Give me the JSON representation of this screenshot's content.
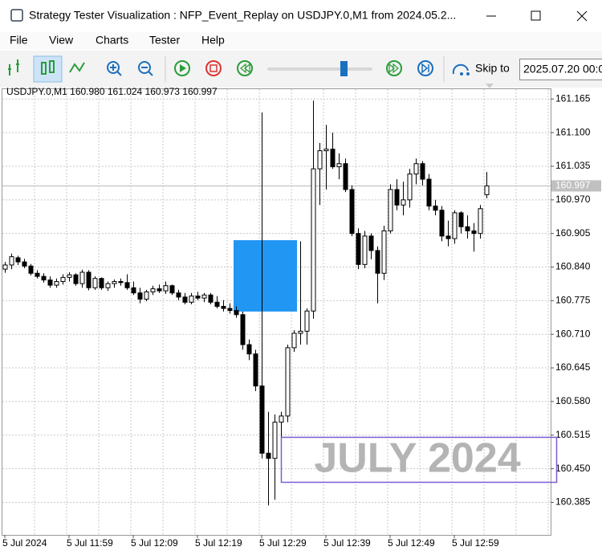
{
  "window": {
    "title": "Strategy Tester Visualization : NFP_Event_Replay on USDJPY.0,M1 from 2024.05.2..."
  },
  "menu": [
    "File",
    "View",
    "Charts",
    "Tester",
    "Help"
  ],
  "toolbar": {
    "skip_label": "Skip to",
    "skip_date": "2025.07.20 00:0"
  },
  "annotation": {
    "text": "JULY 2024"
  },
  "chart_data": {
    "type": "candlestick",
    "header": "USDJPY.0,M1  160.980 161.024 160.973 160.997",
    "categories": [
      "5 Jul 2024",
      null,
      null,
      null,
      null,
      null,
      null,
      null,
      null,
      null,
      "5 Jul 11:59",
      null,
      null,
      null,
      null,
      null,
      null,
      null,
      null,
      null,
      "5 Jul 12:09",
      null,
      null,
      null,
      null,
      null,
      null,
      null,
      null,
      null,
      "5 Jul 12:19",
      null,
      null,
      null,
      null,
      null,
      null,
      null,
      null,
      null,
      "5 Jul 12:29",
      null,
      null,
      null,
      null,
      null,
      null,
      null,
      null,
      null,
      "5 Jul 12:39",
      null,
      null,
      null,
      null,
      null,
      null,
      null,
      null,
      null,
      "5 Jul 12:49",
      null,
      null,
      null,
      null,
      null,
      null,
      null,
      null,
      null,
      "5 Jul 12:59",
      null,
      null,
      null,
      null,
      null
    ],
    "open": [
      160.836,
      160.844,
      160.858,
      160.85,
      160.842,
      160.828,
      160.822,
      160.815,
      160.805,
      160.812,
      160.82,
      160.825,
      160.808,
      160.83,
      160.8,
      160.818,
      160.8,
      160.808,
      160.812,
      160.81,
      160.8,
      160.79,
      160.778,
      160.792,
      160.798,
      160.794,
      160.804,
      160.79,
      160.782,
      160.772,
      160.784,
      160.78,
      160.786,
      160.772,
      160.764,
      160.76,
      160.756,
      160.748,
      160.69,
      160.672,
      160.61,
      160.48,
      160.47,
      160.54,
      160.552,
      160.684,
      160.712,
      160.716,
      160.755,
      161.03,
      161.065,
      161.068,
      161.034,
      161.04,
      160.99,
      160.905,
      160.845,
      160.9,
      160.872,
      160.828,
      160.91,
      160.99,
      160.96,
      160.97,
      161.02,
      161.04,
      161.01,
      160.958,
      160.95,
      160.9,
      160.895,
      160.945,
      160.918,
      160.91,
      160.905,
      160.98
    ],
    "high": [
      160.85,
      160.866,
      160.862,
      160.856,
      160.846,
      160.834,
      160.828,
      160.822,
      160.818,
      160.826,
      160.83,
      160.828,
      160.835,
      160.834,
      160.822,
      160.82,
      160.812,
      160.816,
      160.818,
      160.826,
      160.812,
      160.8,
      160.796,
      160.804,
      160.806,
      160.812,
      160.806,
      160.796,
      160.79,
      160.79,
      160.792,
      160.79,
      160.79,
      160.784,
      160.776,
      160.77,
      160.764,
      160.754,
      160.7,
      160.68,
      161.139,
      160.56,
      160.555,
      160.56,
      160.69,
      160.718,
      160.89,
      160.76,
      161.162,
      161.08,
      161.115,
      161.1,
      161.06,
      161.05,
      160.998,
      160.915,
      160.91,
      160.905,
      160.88,
      160.92,
      161.0,
      161.01,
      161.005,
      161.03,
      161.05,
      161.045,
      161.02,
      160.97,
      160.958,
      160.93,
      160.95,
      160.948,
      160.94,
      160.925,
      160.96,
      161.024
    ],
    "low": [
      160.829,
      160.836,
      160.844,
      160.838,
      160.824,
      160.818,
      160.81,
      160.8,
      160.8,
      160.806,
      160.812,
      160.804,
      160.8,
      160.795,
      160.796,
      160.796,
      160.794,
      160.8,
      160.804,
      160.796,
      160.786,
      160.77,
      160.774,
      160.786,
      160.79,
      160.788,
      160.786,
      160.776,
      160.768,
      160.768,
      160.776,
      160.772,
      160.768,
      160.76,
      160.754,
      160.75,
      160.742,
      160.68,
      160.66,
      160.6,
      160.47,
      160.379,
      160.39,
      160.44,
      160.54,
      160.676,
      160.69,
      160.69,
      160.74,
      160.96,
      160.99,
      161.03,
      161.01,
      160.985,
      160.9,
      160.836,
      160.838,
      160.855,
      160.77,
      160.815,
      160.905,
      160.95,
      160.94,
      160.955,
      161.0,
      160.998,
      160.95,
      160.94,
      160.89,
      160.88,
      160.885,
      160.905,
      160.895,
      160.87,
      160.895,
      160.973
    ],
    "close": [
      160.844,
      160.86,
      160.85,
      160.842,
      160.828,
      160.822,
      160.815,
      160.805,
      160.812,
      160.82,
      160.825,
      160.808,
      160.83,
      160.8,
      160.818,
      160.8,
      160.808,
      160.812,
      160.81,
      160.8,
      160.79,
      160.778,
      160.792,
      160.798,
      160.794,
      160.804,
      160.79,
      160.782,
      160.772,
      160.784,
      160.78,
      160.786,
      160.772,
      160.764,
      160.76,
      160.756,
      160.748,
      160.69,
      160.672,
      160.61,
      160.48,
      160.47,
      160.54,
      160.552,
      160.684,
      160.712,
      160.716,
      160.755,
      161.03,
      161.065,
      161.068,
      161.034,
      161.04,
      160.99,
      160.905,
      160.845,
      160.9,
      160.872,
      160.828,
      160.91,
      160.99,
      160.96,
      160.97,
      161.02,
      161.04,
      161.01,
      160.958,
      160.95,
      160.9,
      160.895,
      160.945,
      160.918,
      160.91,
      160.905,
      160.953,
      160.997
    ],
    "up_color": "#ffffff",
    "down_color": "#000000",
    "zone": {
      "start": 36,
      "end": 45,
      "low": 160.754,
      "high": 160.892,
      "color": "#2196f3"
    },
    "ylim": [
      160.322,
      161.181
    ],
    "yticks": [
      161.165,
      {
        "value": 161.1,
        "label": "161.100"
      },
      161.035,
      {
        "value": 160.97,
        "label": "160.970"
      },
      160.905,
      {
        "value": 160.84,
        "label": "160.840"
      },
      160.775,
      {
        "value": 160.71,
        "label": "160.710"
      },
      160.645,
      {
        "value": 160.58,
        "label": "160.580"
      },
      160.515,
      {
        "value": 160.45,
        "label": "160.450"
      },
      160.385
    ],
    "grid": true
  }
}
